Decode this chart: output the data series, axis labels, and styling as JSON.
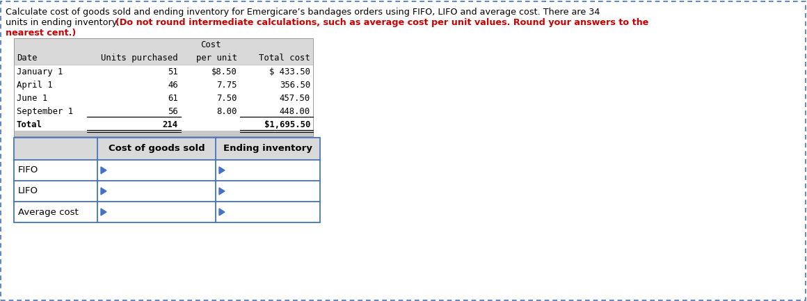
{
  "title_line1_black": "Calculate cost of goods sold and ending inventory for Emergicare’s bandages orders using FIFO, LIFO and average cost. There are 34",
  "title_line2_black": "units in ending inventory. ",
  "title_line2_red": "(Do not round intermediate calculations, such as average cost per unit values. Round your answers to the",
  "title_line3_red": "nearest cent.)",
  "border_color": "#4472C4",
  "background_color": "#FFFFFF",
  "header_bg": "#D9D9D9",
  "footer_bg": "#C8C8C8",
  "table1_rows": [
    [
      "January 1",
      "51",
      "$8.50",
      "$ 433.50"
    ],
    [
      "April 1",
      "46",
      "7.75",
      "356.50"
    ],
    [
      "June 1",
      "61",
      "7.50",
      "457.50"
    ],
    [
      "September 1",
      "56",
      "8.00",
      "448.00"
    ],
    [
      "Total",
      "214",
      "",
      "$1,695.50"
    ]
  ],
  "table2_col_headers": [
    "",
    "Cost of goods sold",
    "Ending inventory"
  ],
  "table2_rows": [
    [
      "FIFO",
      "",
      ""
    ],
    [
      "LIFO",
      "",
      ""
    ],
    [
      "Average cost",
      "",
      ""
    ]
  ],
  "text_color_black": "#000000",
  "text_color_red": "#CC0000"
}
